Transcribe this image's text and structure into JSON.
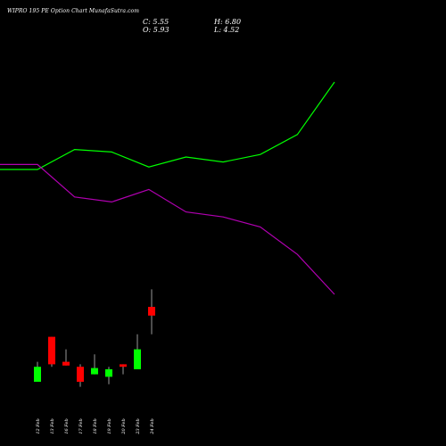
{
  "title": "WIPRO 195 PE Option  Chart MunafaSutra.com",
  "ohlc": {
    "close_text": "C: 5.55",
    "high_text": "H: 6.80",
    "open_text": "O: 5.93",
    "low_text": "L: 4.52"
  },
  "colors": {
    "background": "#000000",
    "up_candle": "#00ff00",
    "down_candle": "#ff0000",
    "wick": "#ffffff",
    "upper_band": "#00ff00",
    "lower_band": "#b000b0"
  },
  "chart_data": {
    "type": "candlestick",
    "categories": [
      "12 Feb",
      "13 Feb",
      "16 Feb",
      "17 Feb",
      "18 Feb",
      "19 Feb",
      "20 Feb",
      "23 Feb",
      "24 Feb"
    ],
    "candles": [
      {
        "open": 15,
        "close": 21,
        "high": 23,
        "low": 15,
        "dir": "up"
      },
      {
        "open": 33,
        "close": 22,
        "high": 33,
        "low": 21,
        "dir": "down"
      },
      {
        "open": 23,
        "close": 21.5,
        "high": 28,
        "low": 21.5,
        "dir": "down"
      },
      {
        "open": 21,
        "close": 15,
        "high": 22,
        "low": 13,
        "dir": "down"
      },
      {
        "open": 18,
        "close": 20.5,
        "high": 26,
        "low": 18,
        "dir": "up"
      },
      {
        "open": 17,
        "close": 20,
        "high": 21,
        "low": 14,
        "dir": "up"
      },
      {
        "open": 22,
        "close": 21,
        "high": 22,
        "low": 18,
        "dir": "down"
      },
      {
        "open": 20,
        "close": 28,
        "high": 34,
        "low": 20,
        "dir": "up"
      },
      {
        "open": 45,
        "close": 41.5,
        "high": 52,
        "low": 34,
        "dir": "down"
      }
    ],
    "upper_band": [
      100,
      100,
      108,
      107,
      101,
      105,
      103,
      106,
      114,
      135
    ],
    "lower_band": [
      102,
      102,
      89,
      87,
      92,
      83,
      81,
      77,
      66,
      50
    ],
    "band_points": 10,
    "ylim": [
      0,
      160
    ]
  }
}
